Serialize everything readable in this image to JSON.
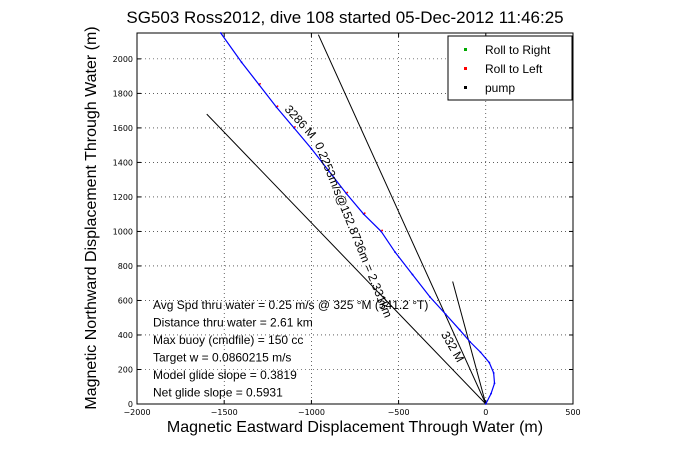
{
  "chart_data": {
    "type": "line",
    "title": "SG503 Ross2012, dive 108 started 05-Dec-2012 11:46:25",
    "xlabel": "Magnetic Eastward Displacement Through Water (m)",
    "ylabel": "Magnetic Northward Displacement Through Water (m)",
    "xlim": [
      -2000,
      500
    ],
    "ylim": [
      0,
      2150
    ],
    "xticks": [
      -2000,
      -1500,
      -1000,
      -500,
      0,
      500
    ],
    "yticks": [
      0,
      200,
      400,
      600,
      800,
      1000,
      1200,
      1400,
      1600,
      1800,
      2000
    ],
    "grid": true,
    "legend_position": "top-right",
    "legend": [
      {
        "label": "Roll to Right",
        "color": "#00aa00"
      },
      {
        "label": "Roll to Left",
        "color": "#ff0000"
      },
      {
        "label": "pump",
        "color": "#000000"
      }
    ],
    "series": [
      {
        "name": "track",
        "color": "#0000ff",
        "x": [
          0,
          30,
          50,
          45,
          20,
          -30,
          -90,
          -150,
          -230,
          -320,
          -420,
          -520,
          -600,
          -700,
          -800,
          -900,
          -1000,
          -1100,
          -1200,
          -1300,
          -1400,
          -1520
        ],
        "y": [
          0,
          60,
          120,
          180,
          240,
          300,
          360,
          430,
          520,
          620,
          750,
          880,
          1000,
          1100,
          1220,
          1350,
          1480,
          1600,
          1720,
          1850,
          1980,
          2150
        ]
      }
    ],
    "reference_lines": [
      {
        "x": [
          0,
          -1600
        ],
        "y": [
          0,
          1680
        ],
        "color": "#000000"
      },
      {
        "x": [
          0,
          -190
        ],
        "y": [
          0,
          710
        ],
        "color": "#000000"
      },
      {
        "x": [
          0,
          -960
        ],
        "y": [
          0,
          2140
        ],
        "color": "#000000"
      }
    ],
    "rotated_labels": [
      {
        "text": "3286 M",
        "x": -1080,
        "y": 1620,
        "angle_deg": 48
      },
      {
        "text": "0.2253m/s@152.8736m = 2.331km",
        "x": -780,
        "y": 1000,
        "angle_deg": 68
      },
      {
        "text": "332 M",
        "x": -210,
        "y": 320,
        "angle_deg": 60
      }
    ],
    "annotations": [
      "Avg Spd thru water =  0.25 m/s @ 325  °M (341.2 °T)",
      "Distance thru water =  2.61 km",
      "Max buoy (cmdfile) = 150 cc",
      "Target w = 0.0860215 m/s",
      "Model glide slope = 0.3819",
      "Net glide slope = 0.5931"
    ]
  }
}
